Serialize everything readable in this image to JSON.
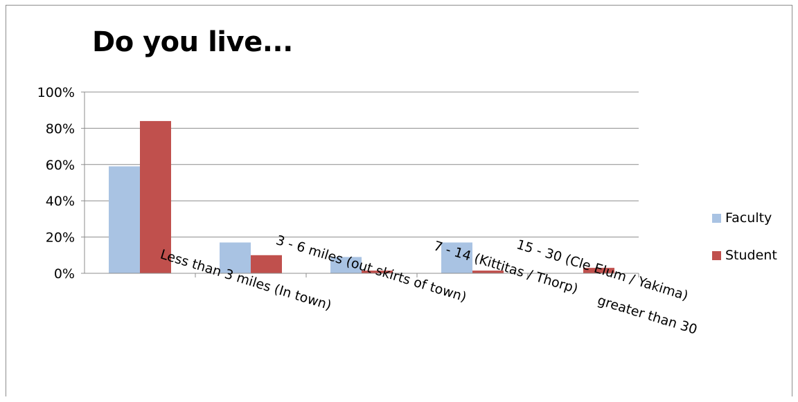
{
  "chart_data": {
    "type": "bar",
    "title": "Do you live...",
    "categories": [
      "Less than 3 miles (In town)",
      "3 - 6 miles (out skirts of town)",
      "7 - 14 (Kittitas / Thorp)",
      "15 - 30 (Cle Elum / Yakima)",
      "greater than 30"
    ],
    "series": [
      {
        "name": "Faculty",
        "color": "#a9c3e3",
        "values": [
          0.59,
          0.17,
          0.09,
          0.17,
          0.0
        ]
      },
      {
        "name": "Student",
        "color": "#c0504d",
        "values": [
          0.84,
          0.1,
          0.015,
          0.015,
          0.03
        ]
      }
    ],
    "ylim": [
      0,
      1
    ],
    "yticks": [
      "0%",
      "20%",
      "40%",
      "60%",
      "80%",
      "100%"
    ],
    "grid": true,
    "legend_position": "right"
  }
}
